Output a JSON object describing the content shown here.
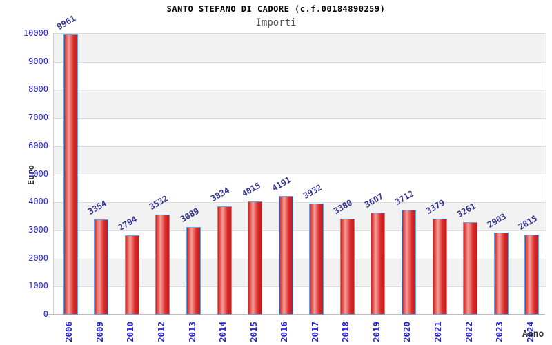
{
  "chart_data": {
    "type": "bar",
    "title": "SANTO STEFANO DI CADORE (c.f.00184890259)",
    "subtitle": "Importi",
    "xlabel": "Anno",
    "ylabel": "Euro",
    "categories": [
      "2006",
      "2009",
      "2010",
      "2012",
      "2013",
      "2014",
      "2015",
      "2016",
      "2017",
      "2018",
      "2019",
      "2020",
      "2021",
      "2022",
      "2023",
      "2024"
    ],
    "values": [
      9961,
      3354,
      2794,
      3532,
      3089,
      3834,
      4015,
      4191,
      3932,
      3380,
      3607,
      3712,
      3379,
      3261,
      2903,
      2815
    ],
    "ylim": [
      0,
      10000
    ],
    "yticks": [
      0,
      1000,
      2000,
      3000,
      4000,
      5000,
      6000,
      7000,
      8000,
      9000,
      10000
    ],
    "grid": true,
    "legend": "none",
    "plot_bands_alternate": true,
    "colors": {
      "tick_label_blue": "#2424d0",
      "value_label_navy": "#34348c",
      "bar_border_blue": "#5aa5ee",
      "bar_red_edge": "#cf2020",
      "bar_red_highlight": "#f59e96",
      "bar_red_mid": "#db2828",
      "bar_red_dark": "#bf1d1d",
      "band_gray": "#f2f2f2",
      "band_white": "#ffffff",
      "grid_line": "#dcdcdc",
      "axis_title_gray": "#333333",
      "title_black": "#000000",
      "subtitle_gray": "#555555"
    }
  }
}
